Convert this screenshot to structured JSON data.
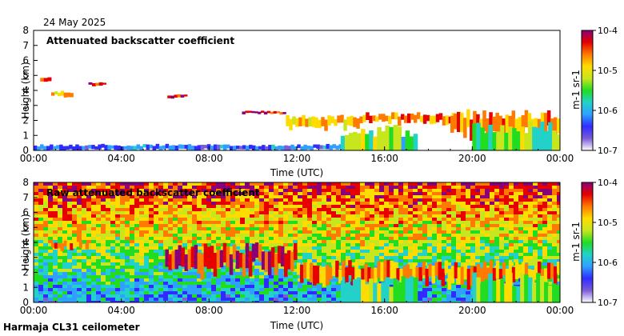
{
  "date": "24 May 2025",
  "footer": "Harmaja CL31 ceilometer",
  "colormap": [
    "#ffffff",
    "#7b5cd6",
    "#2f2cff",
    "#2fa0ff",
    "#22d2c8",
    "#22dc22",
    "#c8e61e",
    "#ffdc00",
    "#ff7a00",
    "#e60000",
    "#8a0078"
  ],
  "chart_data": [
    {
      "type": "heatmap",
      "title": "Attenuated backscatter coefficient",
      "xlabel": "Time (UTC)",
      "ylabel": "Height (km)",
      "x_ticks": [
        "00:00",
        "04:00",
        "08:00",
        "12:00",
        "16:00",
        "20:00",
        "00:00"
      ],
      "xlim_hours": [
        0,
        24
      ],
      "y_ticks": [
        "0",
        "1",
        "2",
        "3",
        "4",
        "5",
        "6",
        "7",
        "8"
      ],
      "ylim": [
        0,
        8
      ],
      "colorbar": {
        "label": "m-1 sr-1",
        "ticks": [
          "10-7",
          "10-6",
          "10-5",
          "10-4"
        ],
        "range_log10": [
          -7,
          -4
        ]
      },
      "features": [
        {
          "name": "near-surface layer",
          "start_h": 0.0,
          "end_h": 14.5,
          "bottom_km": 0.0,
          "top_km": 0.35,
          "level": 0.25
        },
        {
          "name": "cloud layer",
          "start_h": 0.3,
          "end_h": 0.8,
          "bottom_km": 4.6,
          "top_km": 4.9,
          "level": 0.85
        },
        {
          "name": "cloud layer",
          "start_h": 0.8,
          "end_h": 1.8,
          "bottom_km": 3.6,
          "top_km": 3.9,
          "level": 0.75
        },
        {
          "name": "cloud layer",
          "start_h": 2.5,
          "end_h": 3.3,
          "bottom_km": 4.3,
          "top_km": 4.5,
          "level": 0.95
        },
        {
          "name": "cloud layer",
          "start_h": 6.1,
          "end_h": 7.0,
          "bottom_km": 3.5,
          "top_km": 3.7,
          "level": 0.95
        },
        {
          "name": "cloud layer",
          "start_h": 9.5,
          "end_h": 11.5,
          "bottom_km": 2.4,
          "top_km": 2.6,
          "level": 0.95
        },
        {
          "name": "cloud layer",
          "start_h": 11.5,
          "end_h": 15.0,
          "bottom_km": 1.5,
          "top_km": 2.2,
          "level": 0.72
        },
        {
          "name": "cloud layer",
          "start_h": 15.0,
          "end_h": 19.5,
          "bottom_km": 1.8,
          "top_km": 2.4,
          "level": 0.8
        },
        {
          "name": "cloud layer",
          "start_h": 19.0,
          "end_h": 24.0,
          "bottom_km": 1.0,
          "top_km": 2.4,
          "level": 0.78
        },
        {
          "name": "precipitation",
          "start_h": 14.0,
          "end_h": 17.5,
          "bottom_km": 0.0,
          "top_km": 1.8,
          "level": 0.5
        },
        {
          "name": "precipitation",
          "start_h": 20.0,
          "end_h": 24.0,
          "bottom_km": 0.0,
          "top_km": 2.0,
          "level": 0.55
        }
      ]
    },
    {
      "type": "heatmap",
      "title": "Raw attenuated backscatter coefficient",
      "xlabel": "Time (UTC)",
      "ylabel": "Height (km)",
      "x_ticks": [
        "00:00",
        "04:00",
        "08:00",
        "12:00",
        "16:00",
        "20:00",
        "00:00"
      ],
      "xlim_hours": [
        0,
        24
      ],
      "y_ticks": [
        "0",
        "1",
        "2",
        "3",
        "4",
        "5",
        "6",
        "7",
        "8"
      ],
      "ylim": [
        0,
        8
      ],
      "colorbar": {
        "label": "m-1 sr-1",
        "ticks": [
          "10-7",
          "10-6",
          "10-5",
          "10-4"
        ],
        "range_log10": [
          -7,
          -4
        ]
      },
      "features": [
        {
          "name": "noise gradient",
          "start_h": 0.0,
          "end_h": 24.0,
          "bottom_km": 0.0,
          "top_km": 8.0,
          "level": 0.75
        },
        {
          "name": "cloud layer",
          "start_h": 0.8,
          "end_h": 2.5,
          "bottom_km": 3.5,
          "top_km": 4.0,
          "level": 0.8
        },
        {
          "name": "cloud layer",
          "start_h": 6.0,
          "end_h": 12.0,
          "bottom_km": 2.0,
          "top_km": 3.6,
          "level": 0.92
        },
        {
          "name": "cloud layer",
          "start_h": 12.0,
          "end_h": 24.0,
          "bottom_km": 1.2,
          "top_km": 2.5,
          "level": 0.8
        },
        {
          "name": "precipitation",
          "start_h": 14.0,
          "end_h": 17.5,
          "bottom_km": 0.0,
          "top_km": 1.8,
          "level": 0.5
        },
        {
          "name": "precipitation",
          "start_h": 20.0,
          "end_h": 24.0,
          "bottom_km": 0.0,
          "top_km": 2.0,
          "level": 0.55
        }
      ]
    }
  ]
}
